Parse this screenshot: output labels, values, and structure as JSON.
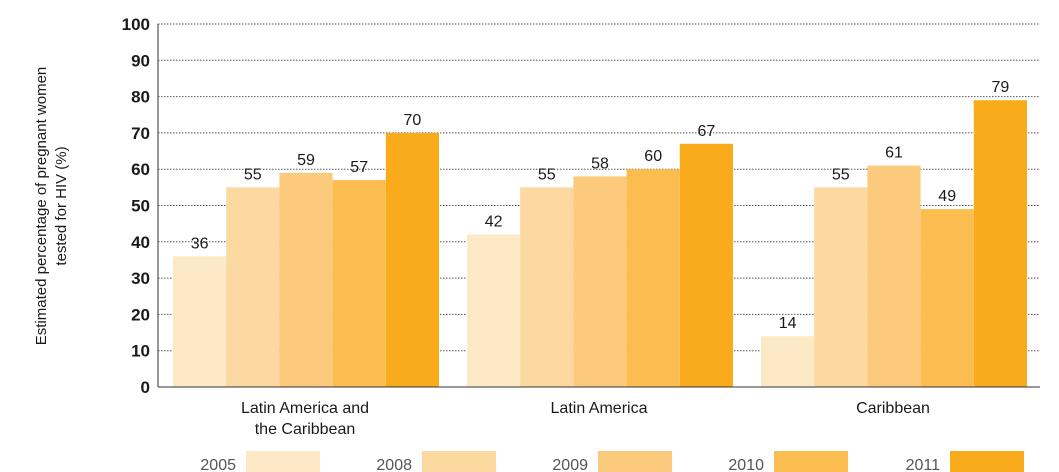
{
  "chart_data": {
    "type": "bar",
    "title": "",
    "ylabel_lines": [
      "Estimated percentage of pregnant women",
      "tested for HIV (%)"
    ],
    "xlabel": "",
    "ylim": [
      0,
      100
    ],
    "yticks": [
      0,
      10,
      20,
      30,
      40,
      50,
      60,
      70,
      80,
      90,
      100
    ],
    "grid": "horizontal-dotted",
    "categories": [
      [
        "Latin America and",
        "the Caribbean"
      ],
      [
        "Latin America"
      ],
      [
        "Caribbean"
      ]
    ],
    "series": [
      {
        "name": "2005",
        "color": "#fde9c6",
        "values": [
          36,
          42,
          14
        ]
      },
      {
        "name": "2008",
        "color": "#fcd9a0",
        "values": [
          55,
          55,
          55
        ]
      },
      {
        "name": "2009",
        "color": "#fbca7c",
        "values": [
          59,
          58,
          61
        ]
      },
      {
        "name": "2010",
        "color": "#fbbd50",
        "values": [
          57,
          60,
          49
        ]
      },
      {
        "name": "2011",
        "color": "#f9ab1c",
        "values": [
          70,
          67,
          79
        ]
      }
    ],
    "legend_position": "bottom"
  }
}
